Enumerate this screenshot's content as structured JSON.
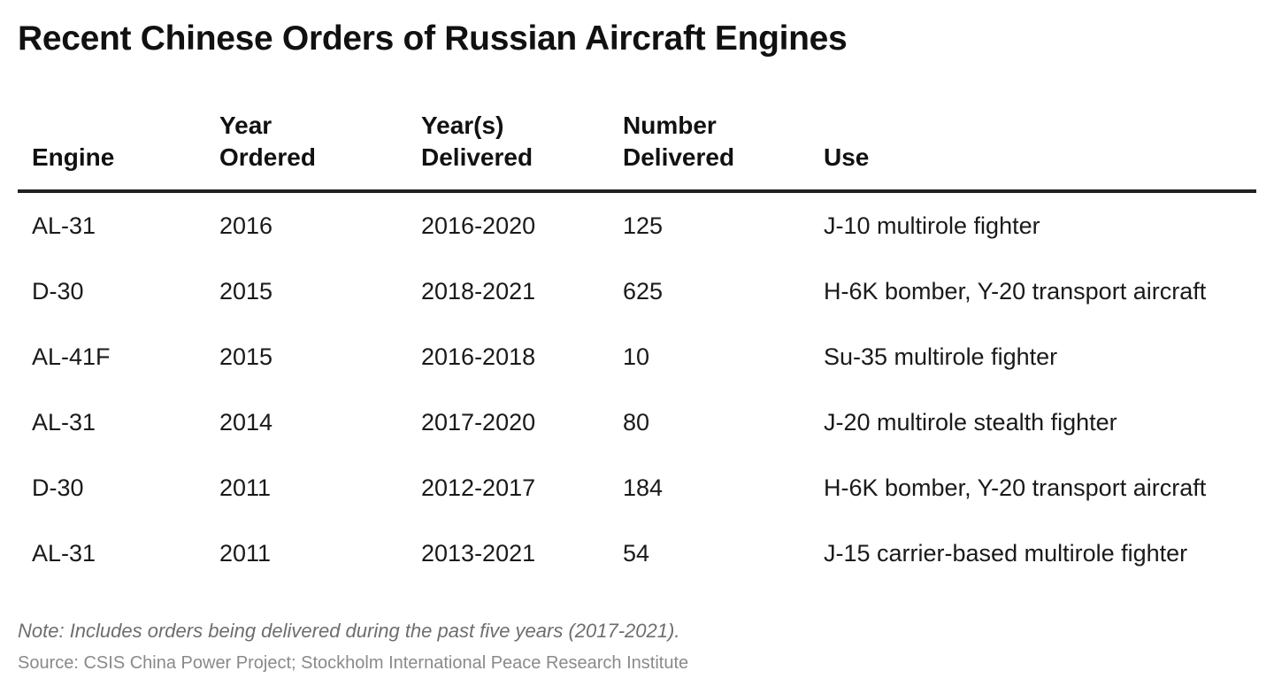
{
  "title": "Recent Chinese Orders of Russian Aircraft Engines",
  "columns": [
    {
      "line1": "",
      "line2": "Engine"
    },
    {
      "line1": "Year",
      "line2": "Ordered"
    },
    {
      "line1": "Year(s)",
      "line2": "Delivered"
    },
    {
      "line1": "Number",
      "line2": "Delivered"
    },
    {
      "line1": "",
      "line2": "Use"
    }
  ],
  "rows": [
    {
      "engine": "AL-31",
      "ordered": "2016",
      "delivered_years": "2016-2020",
      "number": "125",
      "use": "J-10 multirole fighter"
    },
    {
      "engine": "D-30",
      "ordered": "2015",
      "delivered_years": "2018-2021",
      "number": "625",
      "use": "H-6K bomber, Y-20 transport aircraft"
    },
    {
      "engine": "AL-41F",
      "ordered": "2015",
      "delivered_years": "2016-2018",
      "number": "10",
      "use": "Su-35 multirole fighter"
    },
    {
      "engine": "AL-31",
      "ordered": "2014",
      "delivered_years": "2017-2020",
      "number": "80",
      "use": "J-20 multirole stealth fighter"
    },
    {
      "engine": "D-30",
      "ordered": "2011",
      "delivered_years": "2012-2017",
      "number": "184",
      "use": "H-6K bomber, Y-20 transport aircraft"
    },
    {
      "engine": "AL-31",
      "ordered": "2011",
      "delivered_years": "2013-2021",
      "number": "54",
      "use": "J-15 carrier-based multirole fighter"
    }
  ],
  "note": "Note: Includes orders being delivered during the past five years (2017-2021).",
  "source": "Source: CSIS China Power Project; Stockholm International Peace Research Institute",
  "colors": {
    "header_rule": "#222222",
    "note_text": "#6e6e6e",
    "source_text": "#8a8a8a"
  }
}
